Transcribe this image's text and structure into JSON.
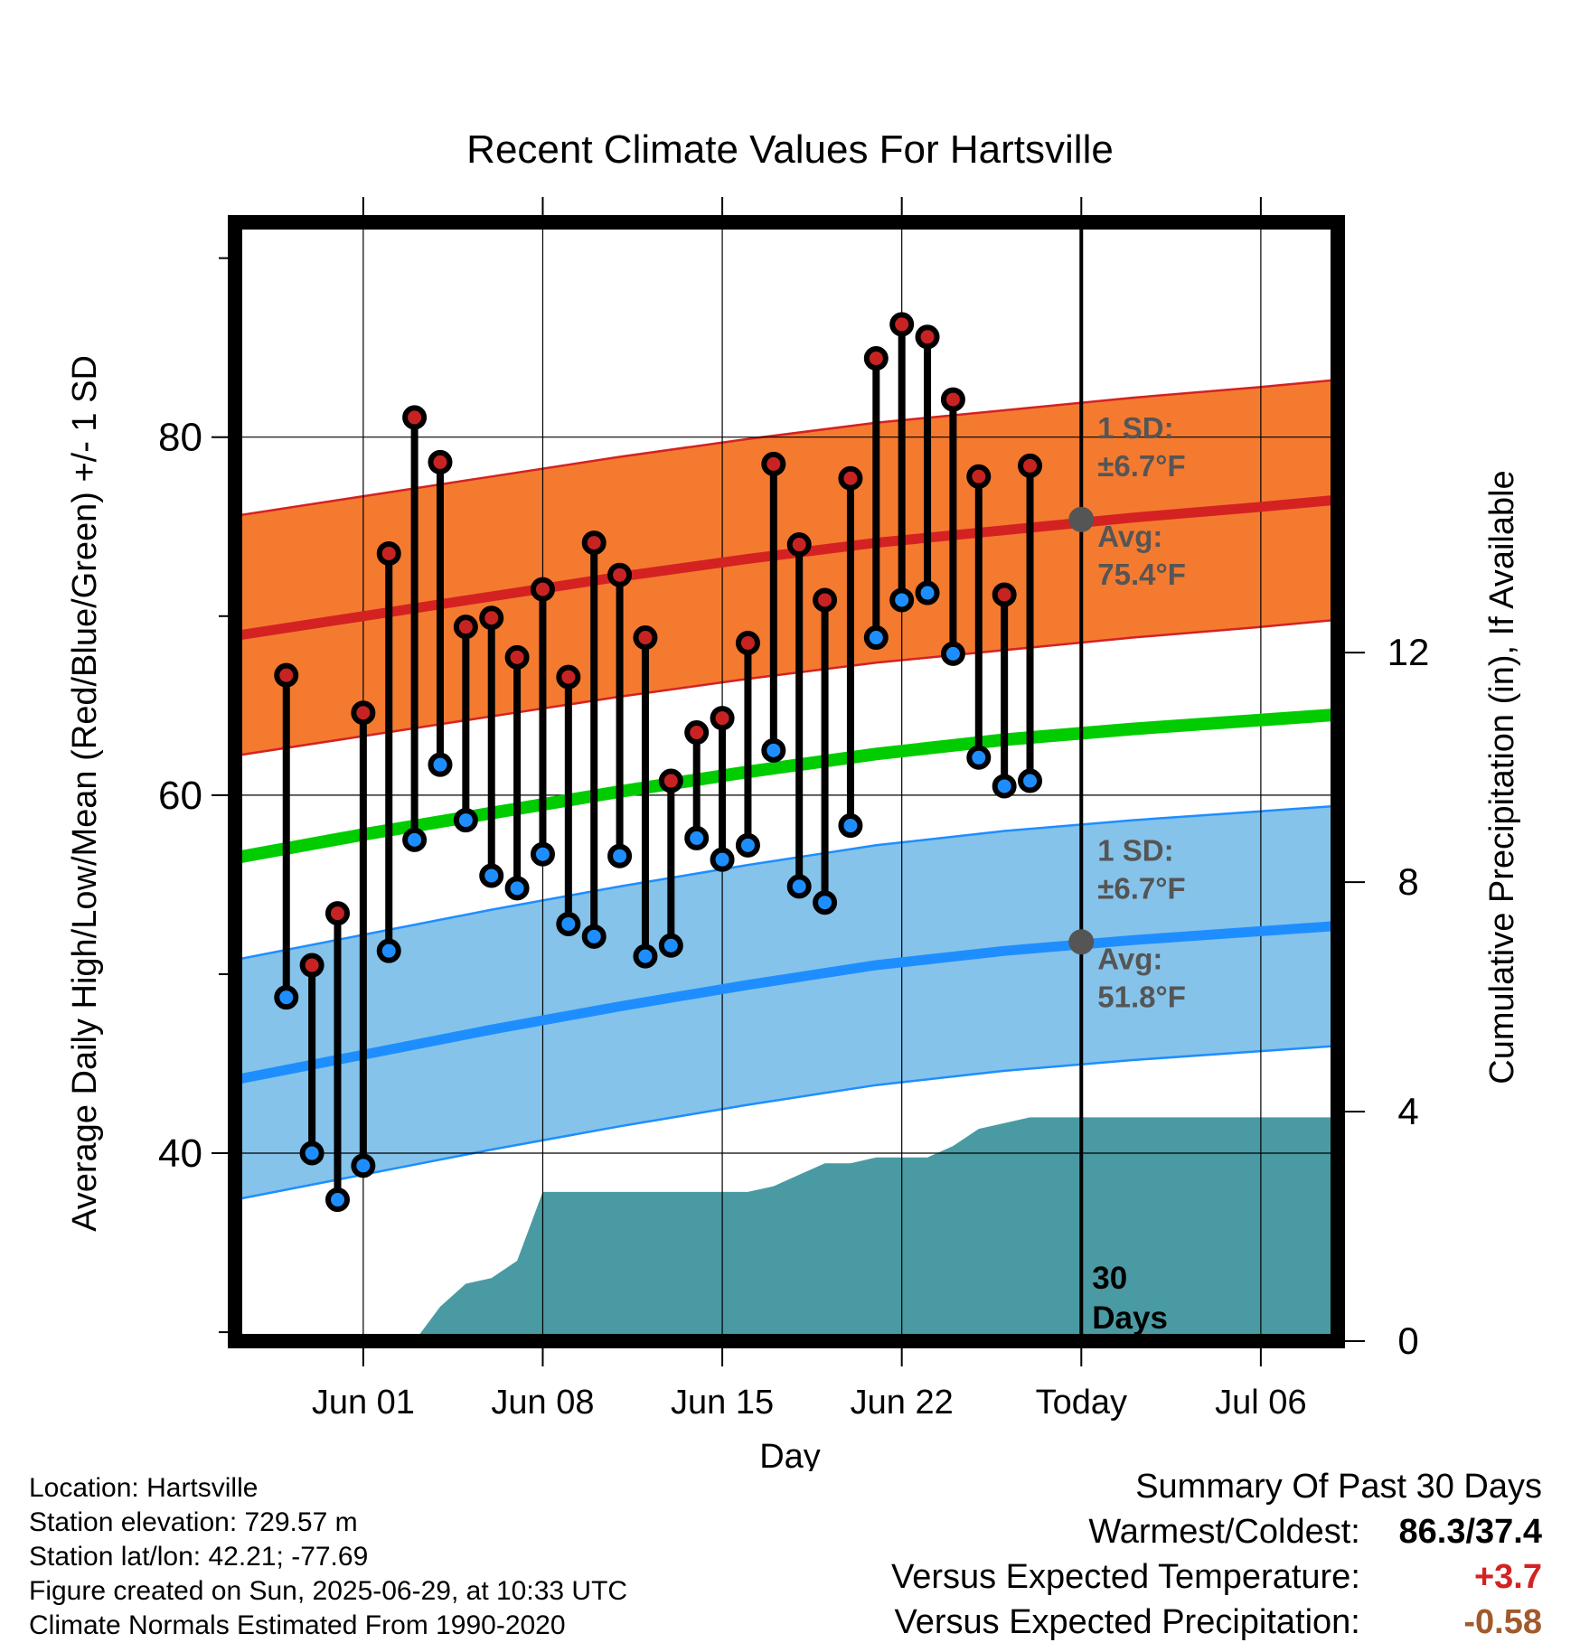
{
  "chart_data": {
    "type": "line",
    "title": "Recent Climate Values For Hartsville",
    "xlabel": "Day",
    "ylabel_left": "Average Daily High/Low/Mean (Red/Blue/Green) +/- 1 SD",
    "ylabel_right": "Cumulative Precipitation (in), If Available",
    "x_range": [
      "2025-05-27",
      "2025-07-09"
    ],
    "y_left_range": [
      29.5,
      92
    ],
    "y_right_range": [
      0,
      19.5
    ],
    "grid": true,
    "x_ticks": [
      {
        "date": "2025-06-01",
        "label": "Jun 01"
      },
      {
        "date": "2025-06-08",
        "label": "Jun 08"
      },
      {
        "date": "2025-06-15",
        "label": "Jun 15"
      },
      {
        "date": "2025-06-22",
        "label": "Jun 22"
      },
      {
        "date": "2025-06-29",
        "label": "Today"
      },
      {
        "date": "2025-07-06",
        "label": "Jul 06"
      }
    ],
    "y_left_ticks": [
      40,
      60,
      80
    ],
    "y_right_ticks": [
      0,
      4,
      8,
      12
    ],
    "today": "2025-06-29",
    "window_label": "30 Days",
    "observed": [
      {
        "date": "2025-05-29",
        "high": 66.7,
        "low": 48.7
      },
      {
        "date": "2025-05-30",
        "high": 50.5,
        "low": 40.0
      },
      {
        "date": "2025-05-31",
        "high": 53.4,
        "low": 37.4
      },
      {
        "date": "2025-06-01",
        "high": 64.6,
        "low": 39.3
      },
      {
        "date": "2025-06-02",
        "high": 73.5,
        "low": 51.3
      },
      {
        "date": "2025-06-03",
        "high": 81.1,
        "low": 57.5
      },
      {
        "date": "2025-06-04",
        "high": 78.6,
        "low": 61.7
      },
      {
        "date": "2025-06-05",
        "high": 69.4,
        "low": 58.6
      },
      {
        "date": "2025-06-06",
        "high": 69.9,
        "low": 55.5
      },
      {
        "date": "2025-06-07",
        "high": 67.7,
        "low": 54.8
      },
      {
        "date": "2025-06-08",
        "high": 71.5,
        "low": 56.7
      },
      {
        "date": "2025-06-09",
        "high": 66.6,
        "low": 52.8
      },
      {
        "date": "2025-06-10",
        "high": 74.1,
        "low": 52.1
      },
      {
        "date": "2025-06-11",
        "high": 72.3,
        "low": 56.6
      },
      {
        "date": "2025-06-12",
        "high": 68.8,
        "low": 51.0
      },
      {
        "date": "2025-06-13",
        "high": 60.8,
        "low": 51.6
      },
      {
        "date": "2025-06-14",
        "high": 63.5,
        "low": 57.6
      },
      {
        "date": "2025-06-15",
        "high": 64.3,
        "low": 56.4
      },
      {
        "date": "2025-06-16",
        "high": 68.5,
        "low": 57.2
      },
      {
        "date": "2025-06-17",
        "high": 78.5,
        "low": 62.5
      },
      {
        "date": "2025-06-18",
        "high": 74.0,
        "low": 54.9
      },
      {
        "date": "2025-06-19",
        "high": 70.9,
        "low": 54.0
      },
      {
        "date": "2025-06-20",
        "high": 77.7,
        "low": 58.3
      },
      {
        "date": "2025-06-21",
        "high": 84.4,
        "low": 68.8
      },
      {
        "date": "2025-06-22",
        "high": 86.3,
        "low": 70.9
      },
      {
        "date": "2025-06-23",
        "high": 85.6,
        "low": 71.3
      },
      {
        "date": "2025-06-24",
        "high": 82.1,
        "low": 67.9
      },
      {
        "date": "2025-06-25",
        "high": 77.8,
        "low": 62.1
      },
      {
        "date": "2025-06-26",
        "high": 71.2,
        "low": 60.5
      },
      {
        "date": "2025-06-27",
        "high": 78.4,
        "low": 60.8
      }
    ],
    "normals": {
      "dates": [
        "2025-05-27",
        "2025-06-01",
        "2025-06-06",
        "2025-06-11",
        "2025-06-16",
        "2025-06-21",
        "2025-06-26",
        "2025-07-01",
        "2025-07-06",
        "2025-07-09"
      ],
      "avg_high": [
        68.9,
        70.0,
        71.1,
        72.2,
        73.2,
        74.1,
        74.8,
        75.5,
        76.1,
        76.5
      ],
      "avg_low": [
        44.1,
        45.5,
        46.9,
        48.2,
        49.4,
        50.5,
        51.3,
        51.9,
        52.4,
        52.7
      ],
      "avg_mean": [
        56.5,
        57.8,
        59.0,
        60.2,
        61.3,
        62.3,
        63.1,
        63.7,
        64.2,
        64.5
      ],
      "sd": 6.7
    },
    "precip_cumulative": {
      "dates": [
        "2025-05-27",
        "2025-06-03",
        "2025-06-04",
        "2025-06-05",
        "2025-06-06",
        "2025-06-07",
        "2025-06-08",
        "2025-06-09",
        "2025-06-13",
        "2025-06-14",
        "2025-06-16",
        "2025-06-17",
        "2025-06-18",
        "2025-06-19",
        "2025-06-20",
        "2025-06-21",
        "2025-06-22",
        "2025-06-23",
        "2025-06-24",
        "2025-06-25",
        "2025-06-26",
        "2025-06-27",
        "2025-07-09"
      ],
      "values": [
        0,
        0,
        0.6,
        1.0,
        1.1,
        1.4,
        2.6,
        2.6,
        2.6,
        2.6,
        2.6,
        2.7,
        2.9,
        3.1,
        3.1,
        3.2,
        3.2,
        3.2,
        3.4,
        3.7,
        3.8,
        3.9,
        3.9
      ]
    },
    "annotations": {
      "high": {
        "sd_label": "1 SD:",
        "sd_value": "±6.7°F",
        "avg_label": "Avg:",
        "avg_value": "75.4°F",
        "avg_at_today": 75.4
      },
      "low": {
        "sd_label": "1 SD:",
        "sd_value": "±6.7°F",
        "avg_label": "Avg:",
        "avg_value": "51.8°F",
        "avg_at_today": 51.8
      }
    },
    "colors": {
      "high_band": "#f47a30",
      "high_line": "#d42222",
      "low_band": "#85c3ea",
      "low_line": "#1e8eff",
      "mean_line": "#00cc00",
      "precip": "#4a9aa3",
      "high_marker": "#c82323",
      "low_marker": "#1e8eff",
      "annotation": "#555555"
    }
  },
  "footer": {
    "location": "Location: Hartsville",
    "elevation": "Station elevation: 729.57 m",
    "latlon": "Station lat/lon: 42.21; -77.69",
    "created": "Figure created on Sun, 2025-06-29, at 10:33 UTC",
    "normals": "Climate Normals Estimated From 1990-2020"
  },
  "summary": {
    "heading": "Summary Of Past 30 Days",
    "warm_cold_label": "Warmest/Coldest:",
    "warm_cold_value": "86.3/37.4",
    "temp_label": "Versus Expected Temperature:",
    "temp_value": "+3.7",
    "temp_color": "#d42222",
    "precip_label": "Versus Expected Precipitation:",
    "precip_value": "-0.58",
    "precip_color": "#a05a2c"
  }
}
